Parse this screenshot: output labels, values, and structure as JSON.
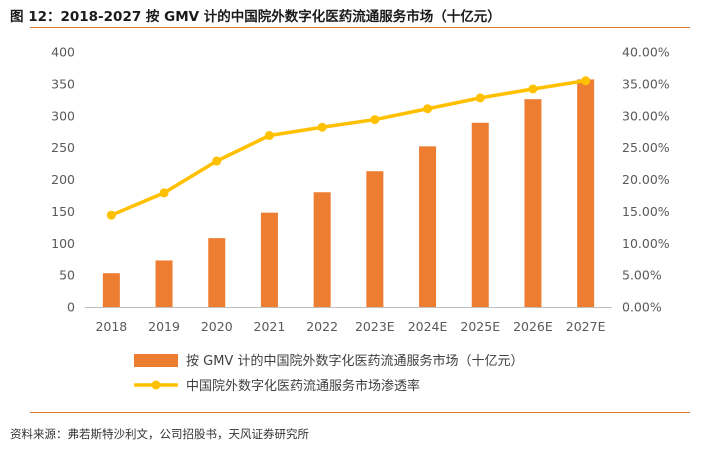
{
  "title": "图 12：2018-2027 按 GMV 计的中国院外数字化医药流通服务市场（十亿元）",
  "source": "资料来源：弗若斯特沙利文，公司招股书，天风证券研究所",
  "colors": {
    "bar": "#ED7D31",
    "line": "#FFC000",
    "frame": "#E87722"
  },
  "chart_data": {
    "type": "bar",
    "categories": [
      "2018",
      "2019",
      "2020",
      "2021",
      "2022",
      "2023E",
      "2024E",
      "2025E",
      "2026E",
      "2027E"
    ],
    "series": [
      {
        "name": "按 GMV 计的中国院外数字化医药流通服务市场（十亿元）",
        "type": "bar",
        "axis": "left",
        "values": [
          53,
          73,
          108,
          148,
          180,
          213,
          252,
          289,
          326,
          357
        ]
      },
      {
        "name": "中国院外数字化医药流通服务市场渗透率",
        "type": "line",
        "axis": "right",
        "values": [
          14.4,
          17.9,
          22.9,
          26.9,
          28.2,
          29.4,
          31.1,
          32.8,
          34.2,
          35.5
        ]
      }
    ],
    "y_left": {
      "lim": [
        0,
        400
      ],
      "ticks": [
        0,
        50,
        100,
        150,
        200,
        250,
        300,
        350,
        400
      ]
    },
    "y_right": {
      "lim": [
        0,
        40
      ],
      "ticks": [
        "0.00%",
        "5.00%",
        "10.00%",
        "15.00%",
        "20.00%",
        "25.00%",
        "30.00%",
        "35.00%",
        "40.00%"
      ]
    },
    "grid": false,
    "legend": "bottom"
  }
}
